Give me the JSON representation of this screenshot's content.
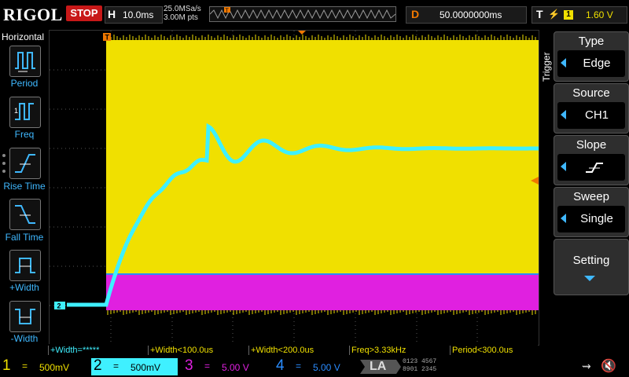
{
  "top": {
    "logo": "RIGOL",
    "run_state": "STOP",
    "horizontal_key": "H",
    "timebase": "10.0ms",
    "sample_rate": "25.0MSa/s",
    "memory_depth": "3.00M pts",
    "delay_key": "D",
    "delay": "50.0000000ms",
    "trigger_key": "T",
    "trigger_channel": "1",
    "trigger_level": "1.60 V"
  },
  "left_panel": {
    "title": "Horizontal",
    "items": [
      {
        "label": "Period",
        "icon": "period-icon"
      },
      {
        "label": "Freq",
        "icon": "freq-icon"
      },
      {
        "label": "Rise Time",
        "icon": "rise-time-icon"
      },
      {
        "label": "Fall Time",
        "icon": "fall-time-icon"
      },
      {
        "label": "+Width",
        "icon": "pos-width-icon"
      },
      {
        "label": "-Width",
        "icon": "neg-width-icon"
      }
    ]
  },
  "right_panel": {
    "side_label": "Trigger",
    "menus": [
      {
        "title": "Type",
        "value": "Edge"
      },
      {
        "title": "Source",
        "value": "CH1"
      },
      {
        "title": "Slope",
        "value": "",
        "icon": "rising-edge-icon"
      },
      {
        "title": "Sweep",
        "value": "Single"
      },
      {
        "title": "Setting",
        "value": ""
      }
    ]
  },
  "measurements": [
    "+Width=*****",
    "+Width<100.0us",
    "+Width<200.0us",
    "Freq>3.33kHz",
    "Period<300.0us"
  ],
  "channels": [
    {
      "num": "1",
      "coupling": "=",
      "scale": "500mV",
      "color": "#f0e000",
      "active": false
    },
    {
      "num": "2",
      "coupling": "=",
      "scale": "500mV",
      "color": "#3ff0ff",
      "active": true
    },
    {
      "num": "3",
      "coupling": "=",
      "scale": "5.00 V",
      "color": "#e020e0",
      "active": false
    },
    {
      "num": "4",
      "coupling": "=",
      "scale": "5.00 V",
      "color": "#2a8cff",
      "active": false
    }
  ],
  "la": {
    "label": "LA",
    "digits_top": "0123 4567",
    "digits_bottom": "8901 2345"
  },
  "markers": {
    "trigger_pos": "T",
    "ch2": "2"
  },
  "colors": {
    "ch1": "#f0e000",
    "ch2": "#3ff0ff",
    "ch3": "#e020e0",
    "ch4": "#2a8cff",
    "accent": "#3fb8ff",
    "stop": "#c81818",
    "delay": "#f07800"
  }
}
